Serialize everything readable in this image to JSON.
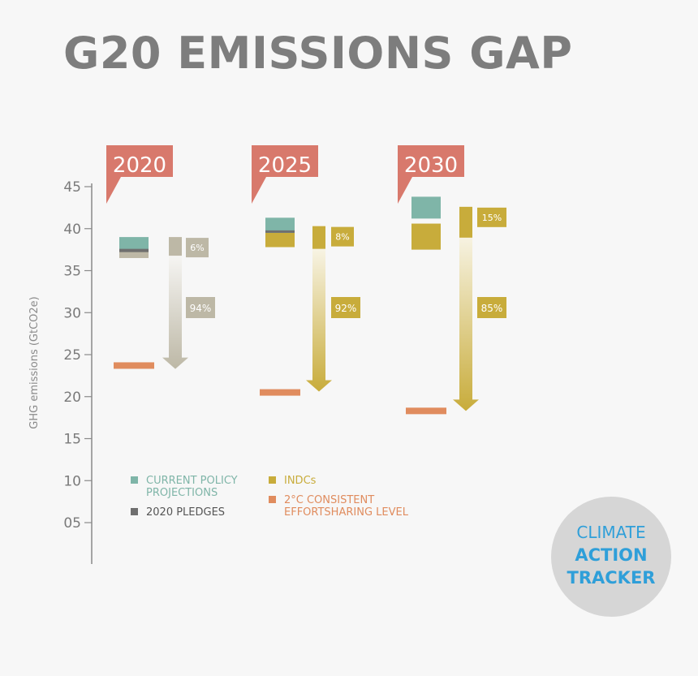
{
  "title": "G20 EMISSIONS GAP",
  "chart_data": {
    "type": "bar",
    "ylabel": "GHG emissions (GtCO2e)",
    "ylim": [
      5,
      45
    ],
    "y_ticks": [
      "45",
      "40",
      "35",
      "30",
      "25",
      "20",
      "15",
      "10",
      "05"
    ],
    "categories": [
      "2020",
      "2025",
      "2030"
    ],
    "current_policy_projections": [
      [
        37.5,
        39
      ],
      [
        39.5,
        41.3
      ],
      [
        41.2,
        43.8
      ]
    ],
    "pledges_2020": [
      37.4,
      null,
      null
    ],
    "indcs": [
      [
        36.5,
        37.5
      ],
      [
        37.8,
        39.5
      ],
      [
        37.5,
        40.6
      ]
    ],
    "two_degree_level": [
      23.7,
      20.5,
      18.3
    ],
    "gap_arrows": [
      {
        "from": 39,
        "to": 23.3,
        "top_label": "6%",
        "main_label": "94%"
      },
      {
        "from": 40.3,
        "to": 20.6,
        "top_label": "8%",
        "main_label": "92%"
      },
      {
        "from": 42.6,
        "to": 18.3,
        "top_label": "15%",
        "main_label": "85%"
      }
    ],
    "legend": [
      {
        "label": "CURRENT POLICY PROJECTIONS",
        "lines": [
          "CURRENT POLICY",
          "PROJECTIONS"
        ],
        "color": "#7fb5a8"
      },
      {
        "label": "2020 PLEDGES",
        "lines": [
          "2020 PLEDGES"
        ],
        "color": "#6f6f6f"
      },
      {
        "label": "INDCs",
        "lines": [
          "INDCs"
        ],
        "color": "#c8ac3b"
      },
      {
        "label": "2°C CONSISTENT EFFORTSHARING LEVEL",
        "lines": [
          "2°C CONSISTENT",
          "EFFORTSHARING LEVEL"
        ],
        "color": "#e08c5e"
      }
    ],
    "colors": {
      "year_flag": "#d8796c",
      "current_policy": "#7fb5a8",
      "pledge": "#6f6f6f",
      "indc": "#c8ac3b",
      "two_degree": "#e08c5e",
      "gap_2020": "#bdb8a6",
      "axis": "#8a8a8a"
    }
  },
  "logo": {
    "line1": "CLIMATE",
    "line2": "ACTION",
    "line3": "TRACKER"
  }
}
